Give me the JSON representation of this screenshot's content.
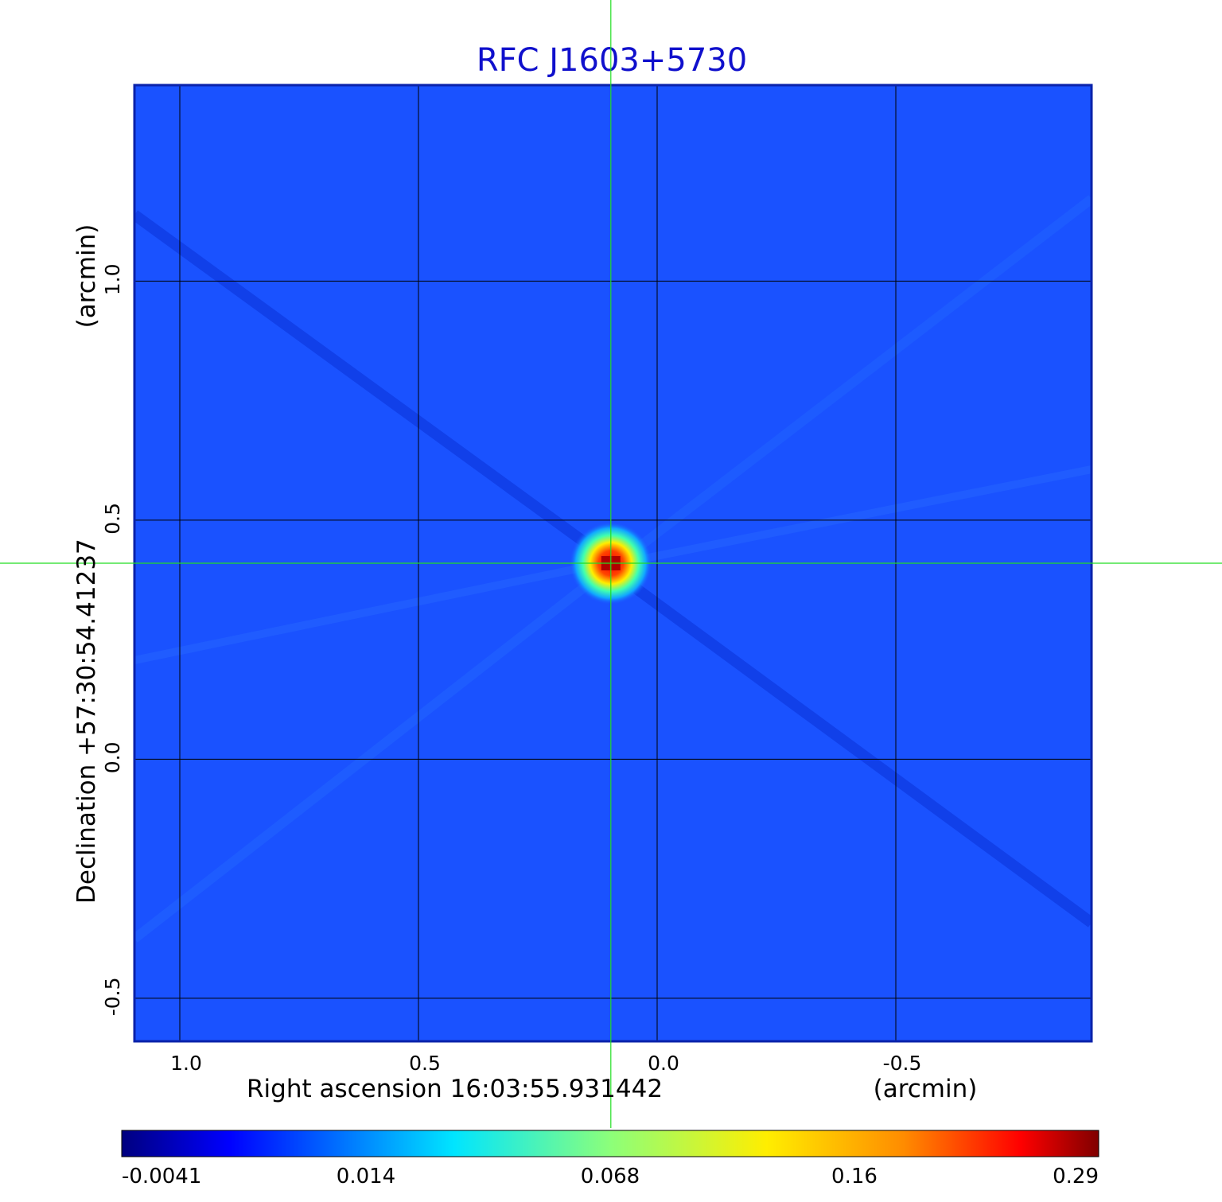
{
  "chart_data": {
    "type": "heatmap",
    "title": "RFC J1603+5730",
    "xlabel": "Right ascension  16:03:55.931442",
    "xunit": "(arcmin)",
    "ylabel": "Declination  +57:30:54.41237",
    "yunit": "(arcmin)",
    "xlim": [
      1.095,
      -0.91
    ],
    "ylim": [
      -0.59,
      1.41
    ],
    "x_ticks": [
      {
        "value": 1.0,
        "label": "1.0"
      },
      {
        "value": 0.5,
        "label": "0.5"
      },
      {
        "value": 0.0,
        "label": "0.0"
      },
      {
        "value": -0.5,
        "label": "-0.5"
      }
    ],
    "y_ticks": [
      {
        "value": 1.0,
        "label": "1.0"
      },
      {
        "value": 0.5,
        "label": "0.5"
      },
      {
        "value": 0.0,
        "label": "0.0"
      },
      {
        "value": -0.5,
        "label": "-0.5"
      }
    ],
    "grid": true,
    "crosshair": {
      "x": 0.097,
      "y": 0.41
    },
    "peak": {
      "x": 0.097,
      "y": 0.41,
      "value": 0.29
    },
    "colorbar": {
      "ticks": [
        {
          "value": -0.0041,
          "label": "-0.0041"
        },
        {
          "value": 0.014,
          "label": "0.014"
        },
        {
          "value": 0.068,
          "label": "0.068"
        },
        {
          "value": 0.16,
          "label": "0.16"
        },
        {
          "value": 0.29,
          "label": "0.29"
        }
      ],
      "colormap": "jet",
      "placement": "bottom"
    }
  },
  "colors": {
    "title": "#1010cc",
    "background_field": "#1a52ff",
    "grid": "#000000",
    "crosshair": "#22dd22",
    "frame": "#0a22aa"
  }
}
